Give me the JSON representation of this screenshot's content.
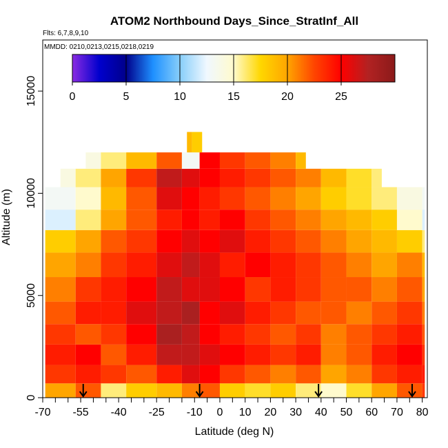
{
  "chart_data": {
    "type": "heatmap",
    "title": "ATOM2 Northbound Days_Since_StratInf_All",
    "flights_note": "Flts: 6,7,8,9,10",
    "dates_note": "MMDD: 0210,0213,0215,0218,0219",
    "xlabel": "Latitude (deg N)",
    "ylabel": "Altitude (m)",
    "xlim": [
      -70,
      82
    ],
    "ylim": [
      0,
      17500
    ],
    "x_ticks": [
      -70,
      -55,
      -40,
      -25,
      -10,
      0,
      10,
      20,
      30,
      40,
      50,
      60,
      70,
      80
    ],
    "x_tick_labels": [
      "-70",
      "-55",
      "-40",
      "-25",
      "-10",
      "0",
      "10",
      "20",
      "30",
      "40",
      "50",
      "60",
      "70",
      "80"
    ],
    "x_minor_ticks": [
      -65,
      -60,
      -50,
      -45,
      -35,
      -30,
      -20,
      -15,
      -5,
      5,
      15,
      25,
      35,
      45,
      55,
      65,
      75
    ],
    "y_ticks": [
      0,
      5000,
      10000,
      15000
    ],
    "y_tick_labels": [
      "0",
      "5000",
      "10000",
      "15000"
    ],
    "grid": false,
    "colorbar": {
      "placement": "top",
      "range": [
        0,
        30
      ],
      "ticks": [
        0,
        5,
        10,
        15,
        20,
        25
      ],
      "tick_labels": [
        "0",
        "5",
        "10",
        "15",
        "20",
        "25"
      ],
      "colors": [
        "#8a2be2",
        "#0000cd",
        "#00008b",
        "#1e90ff",
        "#87cefa",
        "#f0f8ff",
        "#fffacd",
        "#ffd700",
        "#ffa500",
        "#ff4500",
        "#ff0000",
        "#b22222",
        "#8b1a1a"
      ]
    },
    "arrow_latitudes": [
      -54,
      -8,
      39,
      76
    ],
    "layers": [
      {
        "alt": [
          0,
          700
        ],
        "lat": [
          -69,
          -57,
          -47,
          -37,
          -25,
          -15,
          -8,
          0,
          10,
          20,
          30,
          40,
          50,
          60,
          70,
          80
        ],
        "values": [
          20,
          22,
          16,
          18,
          19,
          21,
          22,
          18,
          17,
          18,
          16,
          15,
          17,
          20,
          22,
          23
        ]
      },
      {
        "alt": [
          700,
          1600
        ],
        "lat": [
          -69,
          -57,
          -47,
          -37,
          -25,
          -15,
          -8,
          0,
          10,
          20,
          30,
          40,
          50,
          60,
          70,
          80
        ],
        "values": [
          23,
          24,
          23,
          22,
          24,
          26,
          25,
          23,
          22,
          21,
          22,
          20,
          21,
          23,
          24,
          24
        ]
      },
      {
        "alt": [
          1600,
          2600
        ],
        "lat": [
          -69,
          -57,
          -47,
          -37,
          -25,
          -15,
          -8,
          0,
          10,
          20,
          30,
          40,
          50,
          60,
          70,
          80
        ],
        "values": [
          24,
          25,
          22,
          24,
          27,
          27,
          26,
          25,
          24,
          23,
          24,
          21,
          22,
          24,
          25,
          23
        ]
      },
      {
        "alt": [
          2600,
          3600
        ],
        "lat": [
          -69,
          -57,
          -47,
          -37,
          -25,
          -15,
          -8,
          0,
          10,
          20,
          30,
          40,
          50,
          60,
          70,
          80
        ],
        "values": [
          23,
          22,
          23,
          25,
          28,
          27,
          25,
          24,
          23,
          22,
          23,
          21,
          22,
          23,
          24,
          22
        ]
      },
      {
        "alt": [
          3600,
          4700
        ],
        "lat": [
          -69,
          -57,
          -47,
          -37,
          -25,
          -15,
          -8,
          0,
          10,
          20,
          30,
          40,
          50,
          60,
          70,
          80
        ],
        "values": [
          22,
          24,
          24,
          26,
          27,
          28,
          25,
          26,
          24,
          23,
          22,
          22,
          21,
          22,
          23,
          21
        ]
      },
      {
        "alt": [
          4700,
          5900
        ],
        "lat": [
          -69,
          -57,
          -47,
          -37,
          -25,
          -15,
          -8,
          0,
          10,
          20,
          30,
          40,
          50,
          60,
          70,
          80
        ],
        "values": [
          21,
          23,
          24,
          25,
          27,
          26,
          26,
          25,
          23,
          24,
          23,
          22,
          22,
          21,
          22,
          20
        ]
      },
      {
        "alt": [
          5900,
          7100
        ],
        "lat": [
          -69,
          -57,
          -47,
          -37,
          -25,
          -15,
          -8,
          0,
          10,
          20,
          30,
          40,
          50,
          60,
          70,
          80
        ],
        "values": [
          20,
          21,
          23,
          24,
          26,
          27,
          26,
          24,
          25,
          24,
          23,
          22,
          21,
          20,
          21,
          19
        ]
      },
      {
        "alt": [
          7100,
          8200
        ],
        "lat": [
          -69,
          -57,
          -47,
          -37,
          -25,
          -15,
          -8,
          0,
          10,
          20,
          30,
          40,
          50,
          60,
          70,
          80
        ],
        "values": [
          18,
          20,
          22,
          23,
          25,
          26,
          25,
          26,
          24,
          23,
          22,
          21,
          20,
          19,
          18,
          16
        ]
      },
      {
        "alt": [
          8200,
          9200
        ],
        "lat": [
          -69,
          -57,
          -47,
          -37,
          -25,
          -15,
          -8,
          0,
          10,
          20,
          30,
          40,
          50,
          60,
          70,
          80
        ],
        "values": [
          12,
          16,
          20,
          22,
          24,
          25,
          24,
          25,
          23,
          22,
          21,
          20,
          19,
          18,
          15,
          12
        ]
      },
      {
        "alt": [
          9200,
          10300
        ],
        "lat": [
          -69,
          -57,
          -47,
          -37,
          -25,
          -15,
          -8,
          0,
          10,
          20,
          30,
          40,
          50,
          60,
          70,
          80
        ],
        "values": [
          13,
          15,
          19,
          22,
          26,
          25,
          24,
          23,
          22,
          21,
          20,
          18,
          17,
          16,
          14,
          13
        ]
      },
      {
        "alt": [
          10300,
          11200
        ],
        "lat": [
          -63,
          -57,
          -47,
          -37,
          -25,
          -15,
          -8,
          0,
          10,
          20,
          30,
          40,
          50,
          60
        ],
        "values": [
          14,
          16,
          20,
          23,
          27,
          26,
          25,
          24,
          23,
          22,
          21,
          19,
          17,
          16
        ]
      },
      {
        "alt": [
          11200,
          12000
        ],
        "lat": [
          -53,
          -47,
          -37,
          -25,
          -15,
          -8,
          0,
          10,
          20,
          30
        ],
        "values": [
          14,
          16,
          19,
          22,
          13,
          25,
          23,
          22,
          21,
          19
        ]
      },
      {
        "alt": [
          12000,
          13000
        ],
        "lat": [
          -13,
          -11
        ],
        "values": [
          19,
          18
        ]
      }
    ]
  }
}
